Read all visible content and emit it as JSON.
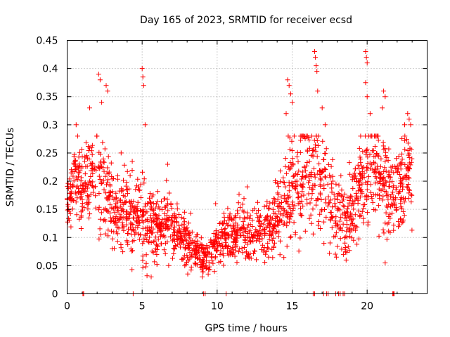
{
  "chart_data": {
    "type": "scatter",
    "title": "Day 165 of 2023, SRMTID for receiver ecsd",
    "xlabel": "GPS time / hours",
    "ylabel": "SRMTID / TECUs",
    "xlim": [
      0,
      24
    ],
    "ylim": [
      0,
      0.45
    ],
    "grid": true,
    "marker": "plus",
    "x_ticks": [
      0,
      5,
      10,
      15,
      20
    ],
    "x_tick_labels": [
      "0",
      "5",
      "10",
      "15",
      "20"
    ],
    "y_ticks": [
      0,
      0.05,
      0.1,
      0.15,
      0.2,
      0.25,
      0.3,
      0.35,
      0.4,
      0.45
    ],
    "y_tick_labels": [
      "0",
      "0.05",
      "0.1",
      "0.15",
      "0.2",
      "0.25",
      "0.3",
      "0.35",
      "0.4",
      "0.45"
    ],
    "color": "#ff0000",
    "profile": {
      "hours": [
        0,
        0.5,
        1,
        1.5,
        2,
        2.5,
        3,
        3.5,
        4,
        4.5,
        5,
        5.5,
        6,
        6.5,
        7,
        7.5,
        8,
        8.5,
        9,
        9.5,
        10,
        10.5,
        11,
        11.5,
        12,
        12.5,
        13,
        13.5,
        14,
        14.5,
        15,
        15.5,
        16,
        16.5,
        17,
        17.5,
        18,
        18.5,
        19,
        19.5,
        20,
        20.5,
        21,
        21.5,
        22,
        22.5,
        23
      ],
      "median": [
        0.17,
        0.2,
        0.19,
        0.2,
        0.21,
        0.19,
        0.15,
        0.14,
        0.14,
        0.13,
        0.13,
        0.13,
        0.12,
        0.12,
        0.12,
        0.11,
        0.09,
        0.08,
        0.07,
        0.07,
        0.09,
        0.1,
        0.1,
        0.11,
        0.11,
        0.11,
        0.11,
        0.12,
        0.14,
        0.16,
        0.19,
        0.2,
        0.21,
        0.22,
        0.2,
        0.17,
        0.14,
        0.13,
        0.15,
        0.19,
        0.21,
        0.23,
        0.2,
        0.18,
        0.19,
        0.2,
        0.22
      ],
      "spread": [
        0.03,
        0.05,
        0.05,
        0.06,
        0.07,
        0.06,
        0.05,
        0.05,
        0.05,
        0.05,
        0.06,
        0.05,
        0.04,
        0.04,
        0.04,
        0.035,
        0.03,
        0.025,
        0.025,
        0.025,
        0.03,
        0.03,
        0.03,
        0.035,
        0.035,
        0.035,
        0.035,
        0.04,
        0.05,
        0.06,
        0.07,
        0.07,
        0.07,
        0.07,
        0.07,
        0.06,
        0.05,
        0.045,
        0.05,
        0.06,
        0.07,
        0.07,
        0.06,
        0.06,
        0.06,
        0.06,
        0.06
      ]
    },
    "spikes": [
      {
        "x": 0.6,
        "y": 0.3
      },
      {
        "x": 0.7,
        "y": 0.28
      },
      {
        "x": 1.5,
        "y": 0.33
      },
      {
        "x": 2.1,
        "y": 0.39
      },
      {
        "x": 2.2,
        "y": 0.38
      },
      {
        "x": 2.6,
        "y": 0.37
      },
      {
        "x": 2.7,
        "y": 0.36
      },
      {
        "x": 2.3,
        "y": 0.34
      },
      {
        "x": 3.6,
        "y": 0.25
      },
      {
        "x": 4.2,
        "y": 0.21
      },
      {
        "x": 5.0,
        "y": 0.4
      },
      {
        "x": 5.05,
        "y": 0.385
      },
      {
        "x": 5.1,
        "y": 0.37
      },
      {
        "x": 5.2,
        "y": 0.3
      },
      {
        "x": 6.7,
        "y": 0.23
      },
      {
        "x": 9.9,
        "y": 0.16
      },
      {
        "x": 12.0,
        "y": 0.19
      },
      {
        "x": 14.7,
        "y": 0.38
      },
      {
        "x": 14.8,
        "y": 0.37
      },
      {
        "x": 14.9,
        "y": 0.355
      },
      {
        "x": 15.0,
        "y": 0.34
      },
      {
        "x": 14.6,
        "y": 0.32
      },
      {
        "x": 16.5,
        "y": 0.43
      },
      {
        "x": 16.55,
        "y": 0.42
      },
      {
        "x": 16.6,
        "y": 0.405
      },
      {
        "x": 16.65,
        "y": 0.395
      },
      {
        "x": 16.7,
        "y": 0.36
      },
      {
        "x": 17.0,
        "y": 0.33
      },
      {
        "x": 17.2,
        "y": 0.3
      },
      {
        "x": 19.9,
        "y": 0.43
      },
      {
        "x": 19.95,
        "y": 0.42
      },
      {
        "x": 20.0,
        "y": 0.41
      },
      {
        "x": 19.9,
        "y": 0.375
      },
      {
        "x": 20.0,
        "y": 0.35
      },
      {
        "x": 20.2,
        "y": 0.32
      },
      {
        "x": 21.1,
        "y": 0.36
      },
      {
        "x": 21.2,
        "y": 0.35
      },
      {
        "x": 21.0,
        "y": 0.33
      },
      {
        "x": 22.5,
        "y": 0.3
      },
      {
        "x": 22.7,
        "y": 0.32
      },
      {
        "x": 22.8,
        "y": 0.31
      },
      {
        "x": 22.9,
        "y": 0.3
      },
      {
        "x": 9.0,
        "y": 0.03
      },
      {
        "x": 5.6,
        "y": 0.03
      },
      {
        "x": 18.6,
        "y": 0.06
      },
      {
        "x": 21.2,
        "y": 0.055
      }
    ],
    "zero_points_x": [
      1.05,
      1.1,
      4.4,
      9.1,
      9.2,
      10.6,
      16.4,
      16.5,
      17.1,
      17.3,
      17.4,
      17.9,
      18.1,
      18.2,
      18.4,
      18.5,
      21.7,
      21.75,
      21.8
    ]
  }
}
